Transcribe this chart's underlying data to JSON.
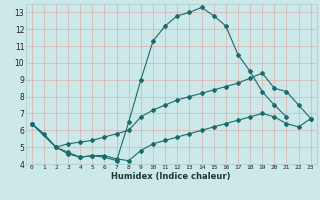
{
  "xlabel": "Humidex (Indice chaleur)",
  "bg_color": "#cce8e8",
  "grid_color": "#aacccc",
  "line_color": "#1a6b6b",
  "xlim": [
    -0.5,
    23.5
  ],
  "ylim": [
    4,
    13.5
  ],
  "xticks": [
    0,
    1,
    2,
    3,
    4,
    5,
    6,
    7,
    8,
    9,
    10,
    11,
    12,
    13,
    14,
    15,
    16,
    17,
    18,
    19,
    20,
    21,
    22,
    23
  ],
  "yticks": [
    4,
    5,
    6,
    7,
    8,
    9,
    10,
    11,
    12,
    13
  ],
  "line1_x": [
    0,
    1,
    2,
    3,
    4,
    5,
    6,
    7,
    8,
    9,
    10,
    11,
    12,
    13,
    14,
    15,
    16,
    17,
    18,
    19,
    20,
    21
  ],
  "line1_y": [
    6.4,
    5.8,
    5.0,
    4.6,
    4.4,
    4.5,
    4.4,
    4.2,
    6.5,
    9.0,
    11.3,
    12.2,
    12.8,
    13.0,
    13.3,
    12.8,
    12.2,
    10.5,
    9.5,
    8.3,
    7.5,
    6.8
  ],
  "line2_x": [
    0,
    2,
    3,
    4,
    5,
    6,
    7,
    8,
    9,
    10,
    11,
    12,
    13,
    14,
    15,
    16,
    17,
    18,
    19,
    20,
    21,
    22,
    23
  ],
  "line2_y": [
    6.4,
    5.0,
    5.2,
    5.3,
    5.4,
    5.6,
    5.8,
    6.0,
    6.8,
    7.2,
    7.5,
    7.8,
    8.0,
    8.2,
    8.4,
    8.6,
    8.8,
    9.1,
    9.4,
    8.5,
    8.3,
    7.5,
    6.7
  ],
  "line3_x": [
    0,
    2,
    3,
    4,
    5,
    6,
    7,
    8,
    9,
    10,
    11,
    12,
    13,
    14,
    15,
    16,
    17,
    18,
    19,
    20,
    21,
    22,
    23
  ],
  "line3_y": [
    6.4,
    5.0,
    4.7,
    4.4,
    4.5,
    4.5,
    4.3,
    4.2,
    4.8,
    5.2,
    5.4,
    5.6,
    5.8,
    6.0,
    6.2,
    6.4,
    6.6,
    6.8,
    7.0,
    6.8,
    6.4,
    6.2,
    6.7
  ]
}
